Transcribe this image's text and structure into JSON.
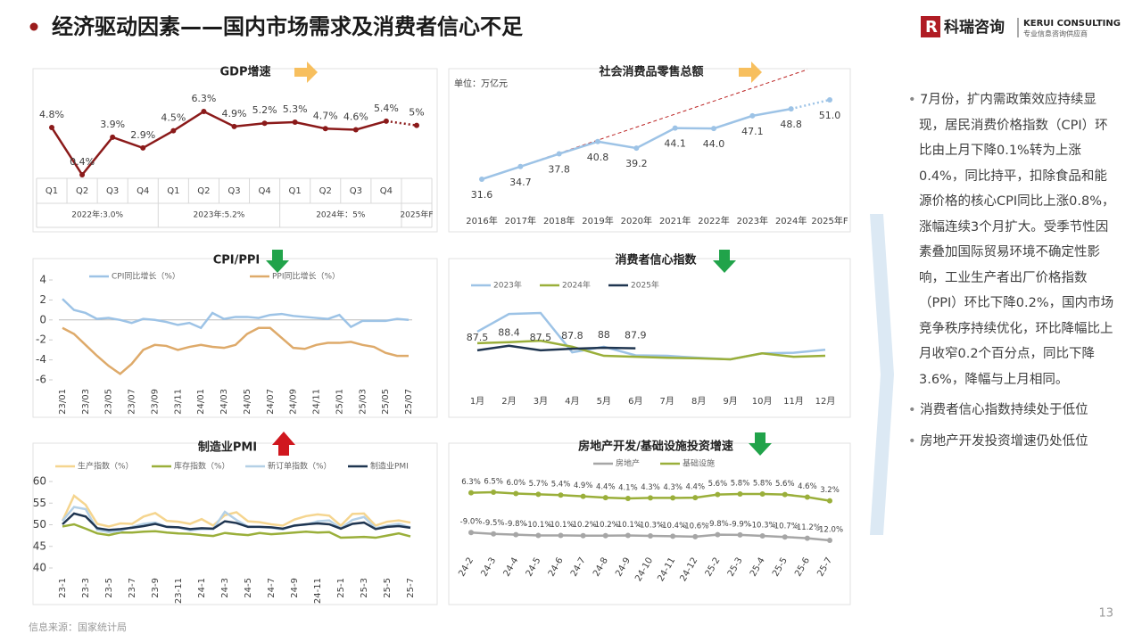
{
  "header": {
    "title": "经济驱动因素——国内市场需求及消费者信心不足",
    "logo": "科瑞咨询",
    "logo_en": "KERUI CONSULTING",
    "logo_sub": "专业信息咨询供应商"
  },
  "chart_data": [
    {
      "type": "line",
      "title": "GDP增速",
      "categories": [
        "Q1",
        "Q2",
        "Q3",
        "Q4",
        "Q1",
        "Q2",
        "Q3",
        "Q4",
        "Q1",
        "Q2",
        "Q3",
        "Q4",
        null
      ],
      "groups": [
        "2022年:3.0%",
        "2023年:5.2%",
        "2024年：5%",
        "2025年F"
      ],
      "values": [
        4.8,
        0.4,
        3.9,
        2.9,
        4.5,
        6.3,
        4.9,
        5.2,
        5.3,
        4.7,
        4.6,
        5.4,
        5
      ],
      "value_labels": [
        "4.8%",
        "0.4%",
        "3.9%",
        "2.9%",
        "4.5%",
        "6.3%",
        "4.9%",
        "5.2%",
        "5.3%",
        "4.7%",
        "4.6%",
        "5.4%",
        "5%"
      ],
      "color": "#8b1a1a",
      "markers": true
    },
    {
      "type": "line",
      "title": "社会消费品零售总额",
      "unit": "单位：万亿元",
      "categories": [
        "2016年",
        "2017年",
        "2018年",
        "2019年",
        "2020年",
        "2021年",
        "2022年",
        "2023年",
        "2024年",
        "2025年F"
      ],
      "values": [
        31.6,
        34.7,
        37.8,
        40.8,
        39.2,
        44.1,
        44.0,
        47.1,
        48.8,
        51.0
      ],
      "value_labels": [
        "31.6",
        "34.7",
        "37.8",
        "40.8",
        "39.2",
        "44.1",
        "44.0",
        "47.1",
        "48.8",
        "51.0"
      ],
      "color": "#9dc3e6",
      "markers": true
    },
    {
      "type": "line",
      "title": "CPI/PPI",
      "categories": [
        "23/01",
        null,
        "23/03",
        null,
        "23/05",
        null,
        "23/07",
        null,
        "23/09",
        null,
        "23/11",
        null,
        "24/01",
        null,
        "24/03",
        null,
        "24/05",
        null,
        "24/07",
        null,
        "24/09",
        null,
        "24/11",
        null,
        "25/01",
        null,
        "25/03",
        null,
        "25/05",
        null,
        "25/07"
      ],
      "series": [
        {
          "name": "CPI同比增长（%）",
          "color": "#9dc3e6",
          "values": [
            2.1,
            1.0,
            0.7,
            0.1,
            0.2,
            0.0,
            -0.3,
            0.1,
            0.0,
            -0.2,
            -0.5,
            -0.3,
            -0.8,
            0.7,
            0.1,
            0.3,
            0.3,
            0.2,
            0.5,
            0.6,
            0.4,
            0.3,
            0.2,
            0.1,
            0.5,
            -0.7,
            -0.1,
            -0.1,
            -0.1,
            0.1,
            0.0
          ]
        },
        {
          "name": "PPI同比增长（%）",
          "color": "#deaa6a",
          "values": [
            -0.8,
            -1.4,
            -2.5,
            -3.6,
            -4.6,
            -5.4,
            -4.4,
            -3.0,
            -2.5,
            -2.6,
            -3.0,
            -2.7,
            -2.5,
            -2.7,
            -2.8,
            -2.5,
            -1.4,
            -0.8,
            -0.8,
            -1.8,
            -2.8,
            -2.9,
            -2.5,
            -2.3,
            -2.3,
            -2.2,
            -2.5,
            -2.7,
            -3.3,
            -3.6,
            -3.6
          ]
        }
      ],
      "ylim": [
        -6,
        4
      ],
      "yticks": [
        4,
        2,
        0,
        -2,
        -4,
        -6
      ]
    },
    {
      "type": "line",
      "title": "消费者信心指数",
      "categories": [
        "1月",
        "2月",
        "3月",
        "4月",
        "5月",
        "6月",
        "7月",
        "8月",
        "9月",
        "10月",
        "11月",
        "12月"
      ],
      "series": [
        {
          "name": "2023年",
          "color": "#9dc3e6",
          "values": [
            91.2,
            94.7,
            94.9,
            87.1,
            88.2,
            86.5,
            86.4,
            86.0,
            85.7,
            86.9,
            87.0,
            87.6
          ]
        },
        {
          "name": "2024年",
          "color": "#9aaf3a",
          "values": [
            88.9,
            89.1,
            89.4,
            88.2,
            86.4,
            86.2,
            86.0,
            85.9,
            85.7,
            86.9,
            86.2,
            86.4
          ]
        },
        {
          "name": "2025年",
          "color": "#1f3550",
          "values": [
            87.5,
            88.4,
            87.5,
            87.8,
            88,
            87.9,
            null,
            null,
            null,
            null,
            null,
            null
          ],
          "value_labels": [
            "87.5",
            "88.4",
            "87.5",
            "87.8",
            "88",
            "87.9",
            null,
            null,
            null,
            null,
            null,
            null
          ]
        }
      ]
    },
    {
      "type": "line",
      "title": "制造业PMI",
      "categories": [
        "23-1",
        null,
        "23-3",
        null,
        "23-5",
        null,
        "23-7",
        null,
        "23-9",
        null,
        "23-11",
        null,
        "24-1",
        null,
        "24-3",
        null,
        "24-5",
        null,
        "24-7",
        null,
        "24-9",
        null,
        "24-11",
        null,
        "25-1",
        null,
        "25-3",
        null,
        "25-5",
        null,
        "25-7"
      ],
      "series": [
        {
          "name": "生产指数（%）",
          "color": "#f5d58f",
          "values": [
            50.9,
            56.7,
            54.6,
            50.2,
            49.6,
            50.3,
            50.2,
            51.9,
            52.7,
            50.9,
            50.7,
            50.2,
            51.3,
            49.8,
            52.2,
            52.9,
            50.8,
            50.6,
            50.1,
            49.8,
            51.2,
            52.0,
            52.4,
            52.1,
            49.8,
            52.5,
            52.6,
            49.8,
            50.7,
            51.0,
            50.5
          ]
        },
        {
          "name": "库存指数（%）",
          "color": "#9aaf3a",
          "values": [
            49.6,
            50.1,
            49.1,
            48.0,
            47.6,
            48.2,
            48.2,
            48.4,
            48.5,
            48.2,
            48.0,
            47.9,
            47.6,
            47.4,
            48.1,
            47.8,
            47.6,
            48.1,
            47.8,
            48.0,
            48.2,
            48.4,
            48.2,
            48.3,
            47.0,
            47.1,
            47.2,
            47.0,
            47.5,
            48.0,
            47.3
          ]
        },
        {
          "name": "新订单指数（%）",
          "color": "#b4d0e6",
          "values": [
            50.9,
            54.1,
            53.6,
            48.8,
            48.3,
            48.6,
            49.5,
            50.2,
            50.5,
            49.5,
            49.4,
            48.7,
            49.0,
            49.0,
            53.0,
            51.1,
            49.6,
            49.5,
            49.3,
            48.9,
            49.9,
            50.0,
            50.8,
            51.0,
            49.2,
            51.1,
            51.8,
            49.2,
            49.8,
            50.2,
            49.4
          ]
        },
        {
          "name": "制造业PMI",
          "color": "#1f3550",
          "values": [
            50.1,
            52.6,
            51.9,
            49.2,
            48.8,
            49.0,
            49.3,
            49.7,
            50.2,
            49.5,
            49.4,
            49.0,
            49.2,
            49.1,
            50.8,
            50.4,
            49.5,
            49.5,
            49.4,
            49.1,
            49.8,
            50.1,
            50.3,
            50.1,
            49.1,
            50.2,
            50.5,
            49.0,
            49.5,
            49.7,
            49.3
          ]
        }
      ],
      "ylim": [
        40,
        60
      ],
      "yticks": [
        60,
        55,
        50,
        45,
        40
      ]
    },
    {
      "type": "line",
      "title": "房地产开发/基础设施投资增速",
      "categories": [
        "24-2",
        "24-3",
        "24-4",
        "24-5",
        "24-6",
        "24-7",
        "24-8",
        "24-9",
        "24-10",
        "24-11",
        "24-12",
        "25-2",
        "25-3",
        "25-4",
        "25-5",
        "25-6",
        "25-7"
      ],
      "series": [
        {
          "name": "房地产",
          "color": "#a6a6a6",
          "values": [
            -9.0,
            -9.5,
            -9.8,
            -10.1,
            -10.1,
            -10.2,
            -10.2,
            -10.1,
            -10.3,
            -10.4,
            -10.6,
            -9.8,
            -9.9,
            -10.3,
            -10.7,
            -11.2,
            -12.0
          ],
          "value_labels": [
            "-9.0%",
            "-9.5%",
            "-9.8%",
            "-10.1%",
            "-10.1%",
            "-10.2%",
            "-10.2%",
            "-10.1%",
            "-10.3%",
            "-10.4%",
            "-10.6%",
            "-9.8%",
            "-9.9%",
            "-10.3%",
            "-10.7%",
            "-11.2%",
            "-12.0%"
          ]
        },
        {
          "name": "基础设施",
          "color": "#9aaf3a",
          "values": [
            6.3,
            6.5,
            6.0,
            5.7,
            5.4,
            4.9,
            4.4,
            4.1,
            4.3,
            4.3,
            4.4,
            5.6,
            5.8,
            5.8,
            5.6,
            4.6,
            3.2
          ],
          "value_labels": [
            "6.3%",
            "6.5%",
            "6.0%",
            "5.7%",
            "5.4%",
            "4.9%",
            "4.4%",
            "4.1%",
            "4.3%",
            "4.3%",
            "4.4%",
            "5.6%",
            "5.8%",
            "5.8%",
            "5.6%",
            "4.6%",
            "3.2%"
          ]
        }
      ],
      "markers": true
    }
  ],
  "sidebar": {
    "bullets": [
      "7月份，扩内需政策效应持续显现，居民消费价格指数（CPI）环比由上月下降0.1%转为上涨0.4%，同比持平，扣除食品和能源价格的核心CPI同比上涨0.8%，涨幅连续3个月扩大。受季节性因素叠加国际贸易环境不确定性影响，工业生产者出厂价格指数（PPI）环比下降0.2%，国内市场竞争秩序持续优化，环比降幅比上月收窄0.2个百分点，同比下降3.6%，降幅与上月相同。",
      "消费者信心指数持续处于低位",
      "房地产开发投资增速仍处低位"
    ]
  },
  "footer": {
    "source": "信息来源：国家统计局",
    "page": 13
  }
}
